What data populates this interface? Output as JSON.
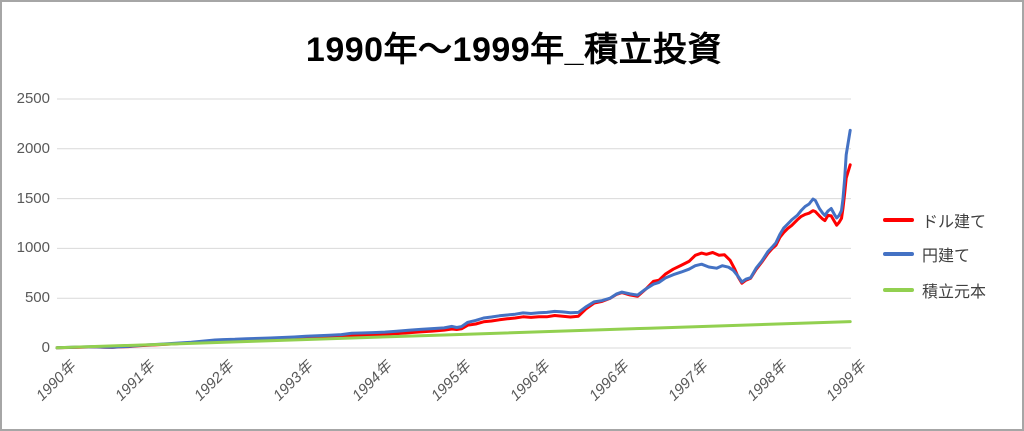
{
  "title": "1990年～1999年_積立投資",
  "colors": {
    "dollar": "#ff0000",
    "yen": "#4472c4",
    "principal": "#92d050",
    "grid": "#d9d9d9",
    "axis_text": "#595959",
    "legend_text": "#404040",
    "frame_border": "#a6a6a6",
    "background": "#ffffff"
  },
  "y_axis": {
    "tick_labels": [
      "0",
      "500",
      "1000",
      "1500",
      "2000",
      "2500"
    ]
  },
  "x_axis": {
    "tick_labels": [
      "1990年",
      "1991年",
      "1992年",
      "1993年",
      "1994年",
      "1995年",
      "1996年",
      "1996年",
      "1997年",
      "1998年",
      "1999年"
    ]
  },
  "legend": {
    "items": [
      {
        "key": "dollar",
        "label": "ドル建て",
        "color": "#ff0000"
      },
      {
        "key": "yen",
        "label": "円建て",
        "color": "#4472c4"
      },
      {
        "key": "principal",
        "label": "積立元本",
        "color": "#92d050"
      }
    ]
  },
  "chart_data": {
    "type": "line",
    "title": "1990年～1999年_積立投資",
    "xlabel": "",
    "ylabel": "",
    "x_tick_labels": [
      "1990年",
      "1991年",
      "1992年",
      "1993年",
      "1994年",
      "1995年",
      "1996年",
      "1996年",
      "1997年",
      "1998年",
      "1999年"
    ],
    "x_unit_range": [
      0,
      10.04
    ],
    "y_ticks": [
      0,
      500,
      1000,
      1500,
      2000,
      2500
    ],
    "ylim": [
      0,
      2500
    ],
    "grid": true,
    "legend_position": "right",
    "series": [
      {
        "key": "dollar",
        "name": "ドル建て",
        "color": "#ff0000",
        "points": [
          [
            0,
            2
          ],
          [
            0.15,
            5
          ],
          [
            0.3,
            8
          ],
          [
            0.45,
            11
          ],
          [
            0.6,
            7
          ],
          [
            0.7,
            6
          ],
          [
            0.8,
            11
          ],
          [
            0.9,
            14
          ],
          [
            1,
            21
          ],
          [
            1.15,
            28
          ],
          [
            1.3,
            34
          ],
          [
            1.5,
            43
          ],
          [
            1.7,
            53
          ],
          [
            1.85,
            63
          ],
          [
            2,
            72
          ],
          [
            2.1,
            77
          ],
          [
            2.25,
            81
          ],
          [
            2.4,
            86
          ],
          [
            2.55,
            89
          ],
          [
            2.7,
            92
          ],
          [
            2.85,
            95
          ],
          [
            3,
            99
          ],
          [
            3.15,
            105
          ],
          [
            3.3,
            111
          ],
          [
            3.45,
            117
          ],
          [
            3.6,
            122
          ],
          [
            3.73,
            125
          ],
          [
            3.85,
            128
          ],
          [
            4,
            131
          ],
          [
            4.15,
            137
          ],
          [
            4.3,
            145
          ],
          [
            4.45,
            154
          ],
          [
            4.6,
            162
          ],
          [
            4.75,
            170
          ],
          [
            4.9,
            180
          ],
          [
            5,
            191
          ],
          [
            5.06,
            186
          ],
          [
            5.12,
            193
          ],
          [
            5.2,
            229
          ],
          [
            5.3,
            241
          ],
          [
            5.4,
            263
          ],
          [
            5.5,
            271
          ],
          [
            5.6,
            283
          ],
          [
            5.7,
            293
          ],
          [
            5.8,
            301
          ],
          [
            5.9,
            313
          ],
          [
            6,
            307
          ],
          [
            6.1,
            313
          ],
          [
            6.2,
            313
          ],
          [
            6.3,
            326
          ],
          [
            6.4,
            319
          ],
          [
            6.5,
            311
          ],
          [
            6.6,
            319
          ],
          [
            6.7,
            396
          ],
          [
            6.8,
            452
          ],
          [
            6.9,
            468
          ],
          [
            7,
            498
          ],
          [
            7.08,
            537
          ],
          [
            7.15,
            556
          ],
          [
            7.25,
            533
          ],
          [
            7.35,
            519
          ],
          [
            7.45,
            589
          ],
          [
            7.55,
            669
          ],
          [
            7.62,
            681
          ],
          [
            7.7,
            741
          ],
          [
            7.8,
            791
          ],
          [
            7.9,
            829
          ],
          [
            8,
            869
          ],
          [
            8.08,
            931
          ],
          [
            8.16,
            953
          ],
          [
            8.22,
            941
          ],
          [
            8.3,
            959
          ],
          [
            8.38,
            931
          ],
          [
            8.45,
            936
          ],
          [
            8.52,
            881
          ],
          [
            8.58,
            791
          ],
          [
            8.62,
            716
          ],
          [
            8.67,
            651
          ],
          [
            8.72,
            681
          ],
          [
            8.78,
            701
          ],
          [
            8.85,
            789
          ],
          [
            8.92,
            861
          ],
          [
            9,
            951
          ],
          [
            9.05,
            996
          ],
          [
            9.1,
            1031
          ],
          [
            9.15,
            1111
          ],
          [
            9.2,
            1161
          ],
          [
            9.25,
            1201
          ],
          [
            9.3,
            1231
          ],
          [
            9.37,
            1286
          ],
          [
            9.42,
            1321
          ],
          [
            9.47,
            1341
          ],
          [
            9.52,
            1353
          ],
          [
            9.57,
            1379
          ],
          [
            9.6,
            1369
          ],
          [
            9.65,
            1326
          ],
          [
            9.69,
            1296
          ],
          [
            9.72,
            1279
          ],
          [
            9.76,
            1331
          ],
          [
            9.8,
            1326
          ],
          [
            9.84,
            1271
          ],
          [
            9.87,
            1233
          ],
          [
            9.9,
            1261
          ],
          [
            9.93,
            1301
          ],
          [
            9.95,
            1406
          ],
          [
            9.97,
            1546
          ],
          [
            9.99,
            1706
          ],
          [
            10.04,
            1839
          ]
        ]
      },
      {
        "key": "yen",
        "name": "円建て",
        "color": "#4472c4",
        "points": [
          [
            0,
            2
          ],
          [
            0.15,
            6
          ],
          [
            0.3,
            10
          ],
          [
            0.45,
            13
          ],
          [
            0.6,
            9
          ],
          [
            0.7,
            8
          ],
          [
            0.8,
            13
          ],
          [
            0.9,
            16
          ],
          [
            1,
            24
          ],
          [
            1.15,
            31
          ],
          [
            1.3,
            37
          ],
          [
            1.5,
            47
          ],
          [
            1.7,
            58
          ],
          [
            1.85,
            69
          ],
          [
            2,
            80
          ],
          [
            2.1,
            84
          ],
          [
            2.25,
            87
          ],
          [
            2.4,
            93
          ],
          [
            2.55,
            96
          ],
          [
            2.7,
            100
          ],
          [
            2.85,
            105
          ],
          [
            3,
            110
          ],
          [
            3.15,
            117
          ],
          [
            3.3,
            123
          ],
          [
            3.45,
            129
          ],
          [
            3.6,
            135
          ],
          [
            3.73,
            148
          ],
          [
            3.85,
            151
          ],
          [
            4,
            155
          ],
          [
            4.15,
            160
          ],
          [
            4.3,
            168
          ],
          [
            4.45,
            178
          ],
          [
            4.6,
            187
          ],
          [
            4.75,
            195
          ],
          [
            4.9,
            202
          ],
          [
            5,
            217
          ],
          [
            5.06,
            206
          ],
          [
            5.12,
            215
          ],
          [
            5.2,
            258
          ],
          [
            5.3,
            277
          ],
          [
            5.4,
            301
          ],
          [
            5.5,
            311
          ],
          [
            5.6,
            323
          ],
          [
            5.7,
            331
          ],
          [
            5.8,
            339
          ],
          [
            5.9,
            352
          ],
          [
            6,
            346
          ],
          [
            6.1,
            353
          ],
          [
            6.2,
            357
          ],
          [
            6.3,
            367
          ],
          [
            6.4,
            362
          ],
          [
            6.5,
            353
          ],
          [
            6.6,
            357
          ],
          [
            6.7,
            416
          ],
          [
            6.8,
            464
          ],
          [
            6.9,
            476
          ],
          [
            7,
            500
          ],
          [
            7.08,
            541
          ],
          [
            7.15,
            561
          ],
          [
            7.25,
            543
          ],
          [
            7.35,
            531
          ],
          [
            7.45,
            591
          ],
          [
            7.55,
            641
          ],
          [
            7.62,
            659
          ],
          [
            7.7,
            703
          ],
          [
            7.8,
            736
          ],
          [
            7.9,
            762
          ],
          [
            8,
            791
          ],
          [
            8.08,
            826
          ],
          [
            8.16,
            841
          ],
          [
            8.25,
            813
          ],
          [
            8.35,
            801
          ],
          [
            8.42,
            826
          ],
          [
            8.5,
            811
          ],
          [
            8.56,
            781
          ],
          [
            8.62,
            721
          ],
          [
            8.67,
            663
          ],
          [
            8.72,
            691
          ],
          [
            8.78,
            706
          ],
          [
            8.85,
            801
          ],
          [
            8.92,
            871
          ],
          [
            9,
            969
          ],
          [
            9.05,
            1011
          ],
          [
            9.1,
            1056
          ],
          [
            9.15,
            1141
          ],
          [
            9.2,
            1206
          ],
          [
            9.25,
            1246
          ],
          [
            9.3,
            1286
          ],
          [
            9.37,
            1331
          ],
          [
            9.42,
            1381
          ],
          [
            9.47,
            1421
          ],
          [
            9.52,
            1446
          ],
          [
            9.57,
            1496
          ],
          [
            9.6,
            1481
          ],
          [
            9.65,
            1401
          ],
          [
            9.69,
            1356
          ],
          [
            9.72,
            1331
          ],
          [
            9.76,
            1376
          ],
          [
            9.8,
            1401
          ],
          [
            9.84,
            1341
          ],
          [
            9.87,
            1306
          ],
          [
            9.9,
            1331
          ],
          [
            9.93,
            1381
          ],
          [
            9.95,
            1501
          ],
          [
            9.97,
            1691
          ],
          [
            9.99,
            1941
          ],
          [
            10.04,
            2186
          ]
        ]
      },
      {
        "key": "principal",
        "name": "積立元本",
        "color": "#92d050",
        "points": [
          [
            0,
            2
          ],
          [
            2.5,
            68
          ],
          [
            5,
            134
          ],
          [
            7.5,
            199
          ],
          [
            10.04,
            265
          ]
        ]
      }
    ]
  }
}
